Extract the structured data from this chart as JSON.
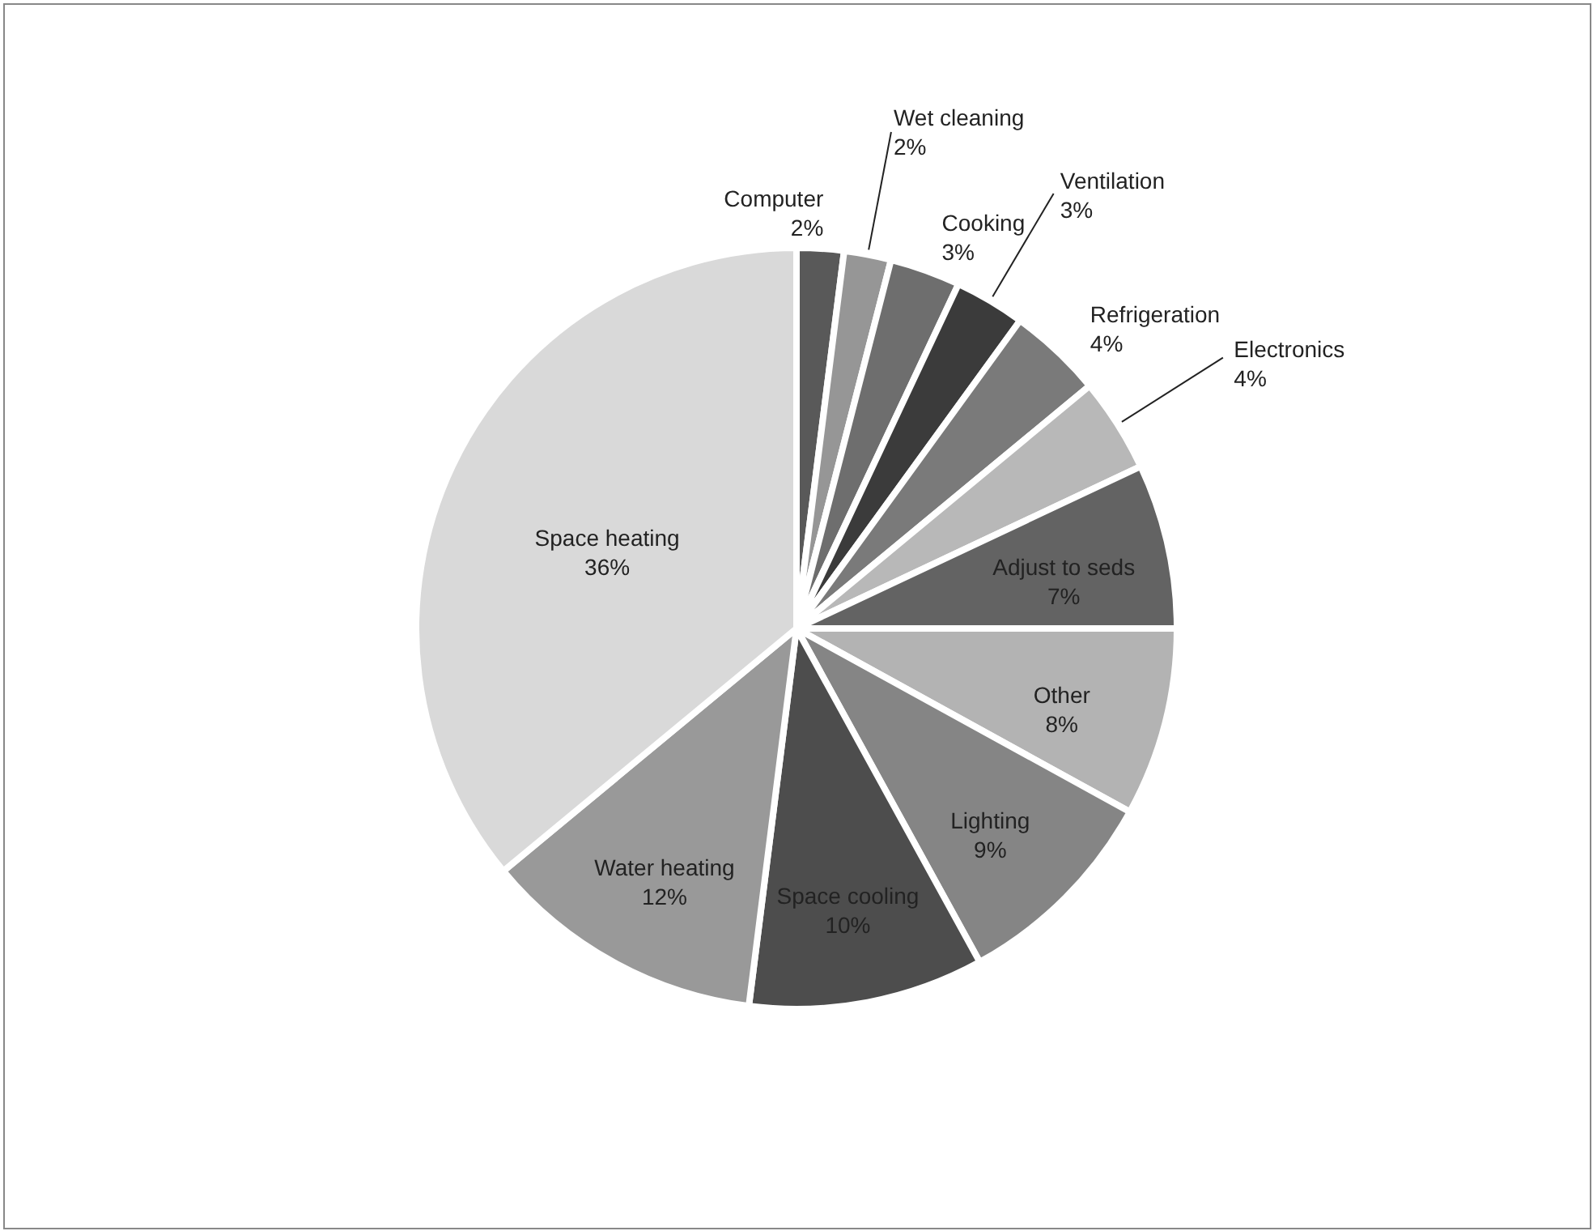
{
  "chart_data": {
    "type": "pie",
    "categories": [
      "Computer",
      "Wet cleaning",
      "Cooking",
      "Ventilation",
      "Refrigeration",
      "Electronics",
      "Adjust to seds",
      "Other",
      "Lighting",
      "Space cooling",
      "Water heating",
      "Space heating"
    ],
    "values": [
      2,
      2,
      3,
      3,
      4,
      4,
      7,
      8,
      9,
      10,
      12,
      36
    ],
    "value_labels": [
      "2%",
      "2%",
      "3%",
      "3%",
      "4%",
      "4%",
      "7%",
      "8%",
      "9%",
      "10%",
      "12%",
      "36%"
    ],
    "colors": [
      "#595959",
      "#969696",
      "#6e6e6e",
      "#3b3b3b",
      "#7a7a7a",
      "#b8b8b8",
      "#636363",
      "#b3b3b3",
      "#858585",
      "#4d4d4d",
      "#999999",
      "#d9d9d9"
    ]
  }
}
